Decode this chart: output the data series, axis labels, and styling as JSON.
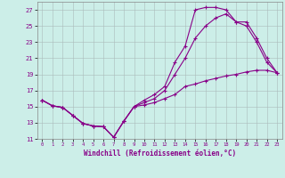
{
  "background_color": "#cceee8",
  "line_color": "#880088",
  "xlabel": "Windchill (Refroidissement éolien,°C)",
  "xlim": [
    -0.5,
    23.5
  ],
  "ylim": [
    11,
    28
  ],
  "xticks": [
    0,
    1,
    2,
    3,
    4,
    5,
    6,
    7,
    8,
    9,
    10,
    11,
    12,
    13,
    14,
    15,
    16,
    17,
    18,
    19,
    20,
    21,
    22,
    23
  ],
  "yticks": [
    11,
    13,
    15,
    17,
    19,
    21,
    23,
    25,
    27
  ],
  "curve1_x": [
    0,
    1,
    2,
    3,
    4,
    5,
    6,
    7,
    8,
    9,
    10,
    11,
    12,
    13,
    14,
    15,
    16,
    17,
    18,
    19,
    20,
    21,
    22,
    23
  ],
  "curve1_y": [
    15.8,
    15.1,
    14.9,
    13.9,
    12.9,
    12.6,
    12.5,
    11.2,
    13.2,
    15.0,
    15.8,
    16.5,
    17.5,
    20.5,
    22.5,
    27.0,
    27.3,
    27.3,
    27.0,
    25.5,
    25.0,
    23.0,
    20.5,
    19.2
  ],
  "curve2_x": [
    0,
    1,
    2,
    3,
    4,
    5,
    6,
    7,
    8,
    9,
    10,
    11,
    12,
    13,
    14,
    15,
    16,
    17,
    18,
    19,
    20,
    21,
    22,
    23
  ],
  "curve2_y": [
    15.8,
    15.1,
    14.9,
    13.9,
    12.9,
    12.6,
    12.5,
    11.2,
    13.2,
    15.0,
    15.5,
    16.0,
    17.0,
    19.0,
    21.0,
    23.5,
    25.0,
    26.0,
    26.5,
    25.5,
    25.5,
    23.5,
    21.0,
    19.2
  ],
  "curve3_x": [
    0,
    1,
    2,
    3,
    4,
    5,
    6,
    7,
    8,
    9,
    10,
    11,
    12,
    13,
    14,
    15,
    16,
    17,
    18,
    19,
    20,
    21,
    22,
    23
  ],
  "curve3_y": [
    15.8,
    15.1,
    14.9,
    13.9,
    12.9,
    12.6,
    12.5,
    11.2,
    13.2,
    15.0,
    15.2,
    15.5,
    16.0,
    16.5,
    17.5,
    17.8,
    18.2,
    18.5,
    18.8,
    19.0,
    19.3,
    19.5,
    19.5,
    19.2
  ]
}
